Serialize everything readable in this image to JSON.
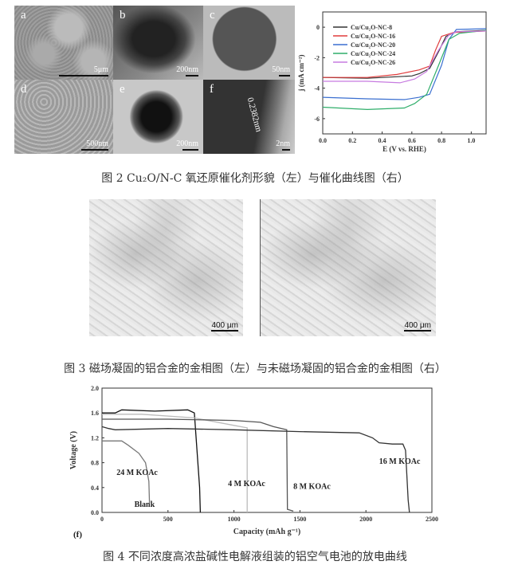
{
  "figure2": {
    "panels": [
      {
        "label": "a",
        "scale": "5μm"
      },
      {
        "label": "b",
        "scale": "200nm"
      },
      {
        "label": "c",
        "scale": "50nm"
      },
      {
        "label": "d",
        "scale": "500nm"
      },
      {
        "label": "e",
        "scale": "200nm"
      },
      {
        "label": "f",
        "scale": "2nm",
        "annotation": "0.2382nm"
      }
    ],
    "caption": "图 2 Cu₂O/N-C 氧还原催化剂形貌（左）与催化曲线图（右）"
  },
  "figure3": {
    "left_scale": "400 μm",
    "right_scale": "400 μm",
    "caption": "图 3 磁场凝固的铝合金的金相图（左）与未磁场凝固的铝合金的金相图（右）"
  },
  "figure4": {
    "caption": "图 4 不同浓度高浓盐碱性电解液组装的铝空气电池的放电曲线"
  },
  "chart_data": [
    {
      "type": "line",
      "title": "",
      "xlabel": "E (V vs. RHE)",
      "ylabel": "j (mA cm⁻²)",
      "xlim": [
        0,
        1.1
      ],
      "ylim": [
        -7,
        1
      ],
      "xticks": [
        "0.0",
        "0.2",
        "0.4",
        "0.6",
        "0.8",
        "1.0"
      ],
      "yticks": [
        "0",
        "-2",
        "-4",
        "-6"
      ],
      "legend_position": "top-left",
      "series": [
        {
          "name": "Cu/Cu₂O-NC-8",
          "color": "#333333",
          "x": [
            0,
            0.3,
            0.6,
            0.65,
            0.72,
            0.78,
            0.83,
            0.9,
            1.1
          ],
          "y": [
            -3.3,
            -3.35,
            -3.2,
            -3.05,
            -2.7,
            -1.6,
            -0.6,
            -0.3,
            -0.2
          ]
        },
        {
          "name": "Cu/Cu₂O-NC-16",
          "color": "#e03c3c",
          "x": [
            0,
            0.3,
            0.5,
            0.65,
            0.72,
            0.76,
            0.8,
            0.88,
            1.1
          ],
          "y": [
            -3.3,
            -3.3,
            -3.1,
            -2.8,
            -2.55,
            -1.5,
            -0.6,
            -0.35,
            -0.25
          ]
        },
        {
          "name": "Cu/Cu₂O-NC-20",
          "color": "#3a6fd0",
          "x": [
            0,
            0.3,
            0.55,
            0.65,
            0.72,
            0.8,
            0.85,
            0.9,
            1.1
          ],
          "y": [
            -4.6,
            -4.7,
            -4.75,
            -4.6,
            -4.4,
            -2.5,
            -0.8,
            -0.15,
            -0.1
          ]
        },
        {
          "name": "Cu/Cu₂O-NC-24",
          "color": "#2fae6a",
          "x": [
            0,
            0.3,
            0.55,
            0.62,
            0.7,
            0.78,
            0.85,
            0.92,
            1.1
          ],
          "y": [
            -5.25,
            -5.4,
            -5.3,
            -5.0,
            -4.4,
            -2.5,
            -0.8,
            -0.4,
            -0.2
          ]
        },
        {
          "name": "Cu/Cu₂O-NC-26",
          "color": "#c77be0",
          "x": [
            0,
            0.3,
            0.52,
            0.62,
            0.7,
            0.78,
            0.85,
            0.9,
            1.1
          ],
          "y": [
            -3.55,
            -3.55,
            -3.65,
            -3.4,
            -2.9,
            -1.5,
            -0.5,
            -0.3,
            -0.25
          ]
        }
      ]
    },
    {
      "type": "line",
      "title": "",
      "panel_label": "(f)",
      "xlabel": "Capacity (mAh g⁻¹)",
      "ylabel": "Voltage (V)",
      "xlim": [
        0,
        2500
      ],
      "ylim": [
        0,
        2.0
      ],
      "xticks": [
        "0",
        "500",
        "1000",
        "1500",
        "2000",
        "2500"
      ],
      "yticks": [
        "0.0",
        "0.4",
        "0.8",
        "1.2",
        "1.6",
        "2.0"
      ],
      "series": [
        {
          "name": "24 M KOAc",
          "color": "#777777",
          "x": [
            0,
            150,
            200,
            280,
            330,
            355,
            360
          ],
          "y": [
            1.15,
            1.15,
            1.08,
            0.95,
            0.8,
            0.5,
            0.15
          ]
        },
        {
          "name": "Blank",
          "color": "#111111",
          "x": [
            0,
            100,
            150,
            400,
            650,
            700,
            720,
            740,
            745
          ],
          "y": [
            1.6,
            1.6,
            1.65,
            1.63,
            1.65,
            1.6,
            1.0,
            0.4,
            0.0
          ]
        },
        {
          "name": "4 M KOAc",
          "color": "#bbbbbb",
          "x": [
            0,
            300,
            700,
            1000,
            1100,
            1100
          ],
          "y": [
            1.58,
            1.58,
            1.52,
            1.4,
            1.36,
            0.0
          ]
        },
        {
          "name": "8 M KOAc",
          "color": "#555555",
          "x": [
            0,
            500,
            1000,
            1200,
            1300,
            1400,
            1405,
            1450
          ],
          "y": [
            1.5,
            1.5,
            1.48,
            1.45,
            1.38,
            1.33,
            0.05,
            0.02
          ]
        },
        {
          "name": "16 M KOAc",
          "color": "#333333",
          "x": [
            0,
            50,
            100,
            500,
            1000,
            1500,
            1950,
            2050,
            2100,
            2200,
            2280,
            2300,
            2320,
            2330
          ],
          "y": [
            1.38,
            1.35,
            1.33,
            1.35,
            1.33,
            1.3,
            1.28,
            1.2,
            1.12,
            1.1,
            1.1,
            1.0,
            0.2,
            0.0
          ]
        }
      ]
    }
  ]
}
